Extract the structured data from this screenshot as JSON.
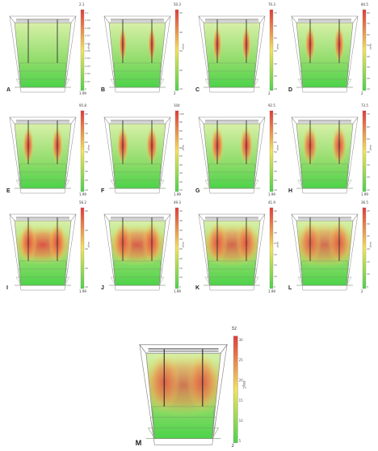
{
  "colors": {
    "low": "#4cd34a",
    "mid": "#f2e25c",
    "high": "#e23a3a",
    "outline": "#888888"
  },
  "panels": [
    {
      "label": "A",
      "max": "2.1",
      "min": "1.99",
      "ticks": [
        "2.1",
        "2.09",
        "2.08",
        "2.07",
        "2.06",
        "2.05",
        "2.04",
        "2.03",
        "2.02",
        "2.01",
        "2"
      ],
      "unit": "degC",
      "heat": 0.0,
      "spread": 0.0
    },
    {
      "label": "B",
      "max": "50.3",
      "min": "2",
      "ticks": [
        "50",
        "40",
        "30",
        "20",
        "10"
      ],
      "unit": "degC",
      "heat": 1.0,
      "spread": 0.08
    },
    {
      "label": "C",
      "max": "70.3",
      "min": "2",
      "ticks": [
        "70",
        "60",
        "50",
        "40",
        "30",
        "20",
        "10"
      ],
      "unit": "degC",
      "heat": 1.0,
      "spread": 0.12
    },
    {
      "label": "D",
      "max": "84.5",
      "min": "2",
      "ticks": [
        "80",
        "70",
        "60",
        "50",
        "40",
        "30",
        "20",
        "10"
      ],
      "unit": "degC",
      "heat": 1.0,
      "spread": 0.16
    },
    {
      "label": "E",
      "max": "95.8",
      "min": "1.99",
      "ticks": [
        "90",
        "80",
        "70",
        "60",
        "50",
        "40",
        "30",
        "20",
        "10"
      ],
      "unit": "degC",
      "heat": 1.0,
      "spread": 0.18
    },
    {
      "label": "F",
      "max": "104",
      "min": "1.99",
      "ticks": [
        "100",
        "90",
        "80",
        "70",
        "60",
        "50",
        "40",
        "30",
        "20",
        "10"
      ],
      "unit": "degC",
      "heat": 1.0,
      "spread": 0.2
    },
    {
      "label": "G",
      "max": "92.5",
      "min": "1.99",
      "ticks": [
        "90",
        "80",
        "70",
        "60",
        "50",
        "40",
        "30",
        "20",
        "10"
      ],
      "unit": "degC",
      "heat": 1.0,
      "spread": 0.24
    },
    {
      "label": "H",
      "max": "73.5",
      "min": "1.99",
      "ticks": [
        "70",
        "60",
        "50",
        "40",
        "30",
        "20",
        "10"
      ],
      "unit": "degC",
      "heat": 0.95,
      "spread": 0.3
    },
    {
      "label": "I",
      "max": "56.2",
      "min": "1.99",
      "ticks": [
        "50",
        "40",
        "30",
        "20",
        "10"
      ],
      "unit": "degC",
      "heat": 0.85,
      "spread": 0.36
    },
    {
      "label": "J",
      "max": "49.3",
      "min": "1.99",
      "ticks": [
        "45",
        "40",
        "35",
        "30",
        "25",
        "20",
        "15",
        "10",
        "5"
      ],
      "unit": "degC",
      "heat": 0.8,
      "spread": 0.4
    },
    {
      "label": "K",
      "max": "41.9",
      "min": "1.99",
      "ticks": [
        "40",
        "35",
        "30",
        "25",
        "20",
        "15",
        "10",
        "5"
      ],
      "unit": "degC",
      "heat": 0.75,
      "spread": 0.45
    },
    {
      "label": "L",
      "max": "36.5",
      "min": "2",
      "ticks": [
        "35",
        "30",
        "25",
        "20",
        "15",
        "10",
        "5"
      ],
      "unit": "degC",
      "heat": 0.7,
      "spread": 0.5
    },
    {
      "label": "M",
      "max": "32",
      "min": "2",
      "ticks": [
        "30",
        "25",
        "20",
        "15",
        "10",
        "5"
      ],
      "unit": "degC",
      "heat": 0.65,
      "spread": 0.55
    }
  ]
}
